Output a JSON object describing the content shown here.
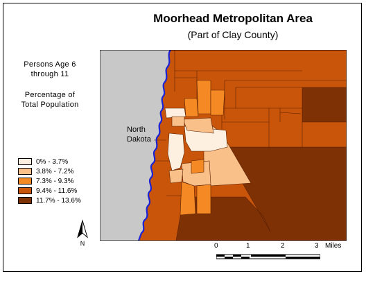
{
  "title": "Moorhead Metropolitan Area",
  "subtitle": "(Part of Clay County)",
  "topic": {
    "line1": "Persons Age 6",
    "line2": "through 11",
    "line3": "Percentage of",
    "line4": "Total Population"
  },
  "region_label": {
    "line1": "North",
    "line2": "Dakota"
  },
  "legend": [
    {
      "label": "0% - 3.7%",
      "color": "#fdf0e0"
    },
    {
      "label": "3.8% - 7.2%",
      "color": "#fac08a"
    },
    {
      "label": "7.3% - 9.3%",
      "color": "#f58a25"
    },
    {
      "label": "9.4% - 11.6%",
      "color": "#c9550a"
    },
    {
      "label": "11.7% - 13.6%",
      "color": "#7f3106"
    }
  ],
  "north_label": "N",
  "scale": {
    "ticks": [
      "0",
      "1",
      "2",
      "3"
    ],
    "unit": "Miles"
  },
  "colors": {
    "river": "#1a22d6",
    "north_dakota": "#c8c8c8"
  }
}
